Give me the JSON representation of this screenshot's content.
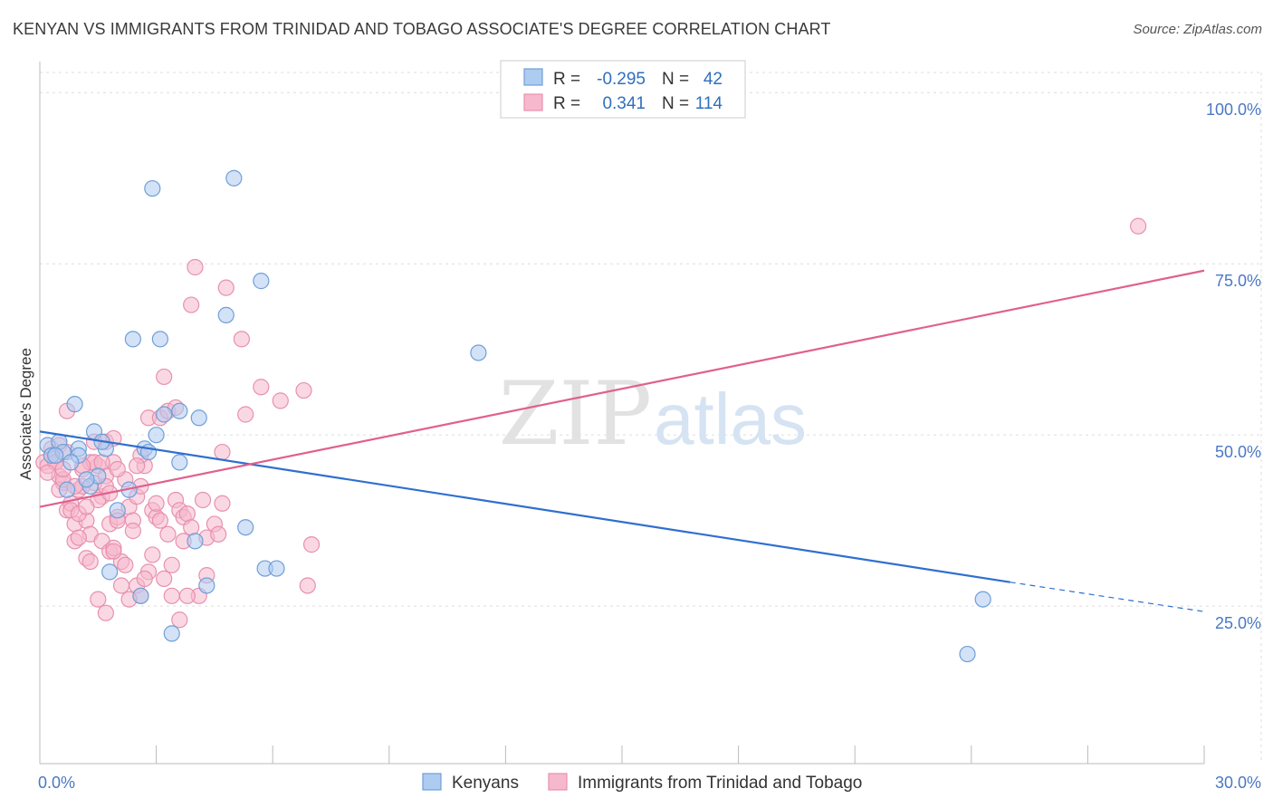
{
  "title": "KENYAN VS IMMIGRANTS FROM TRINIDAD AND TOBAGO ASSOCIATE'S DEGREE CORRELATION CHART",
  "source": "Source: ZipAtlas.com",
  "watermark": {
    "zip": "ZIP",
    "atlas": "atlas"
  },
  "colors": {
    "blue_fill": "#aecbf0",
    "blue_stroke": "#6f9fd8",
    "blue_line": "#2f6fcf",
    "pink_fill": "#f6b8cc",
    "pink_stroke": "#e890ae",
    "pink_line": "#e0608e",
    "tick_label": "#4a78c4",
    "grid": "#dddddd"
  },
  "legend": {
    "rows": [
      {
        "r_label": "R =",
        "r_value": "-0.295",
        "n_label": "N =",
        "n_value": "42",
        "series": "blue"
      },
      {
        "r_label": "R =",
        "r_value": "0.341",
        "n_label": "N =",
        "n_value": "114",
        "series": "pink"
      }
    ]
  },
  "bottom_legend": [
    {
      "label": "Kenyans",
      "series": "blue"
    },
    {
      "label": "Immigrants from Trinidad and Tobago",
      "series": "pink"
    }
  ],
  "chart_data": {
    "type": "scatter",
    "title": "KENYAN VS IMMIGRANTS FROM TRINIDAD AND TOBAGO ASSOCIATE'S DEGREE CORRELATION CHART",
    "xlabel": "",
    "ylabel": "Associate's Degree",
    "xlim": [
      0,
      30
    ],
    "ylim": [
      2,
      104
    ],
    "x_tick_labels": [
      "0.0%",
      "30.0%"
    ],
    "y_ticks": [
      25,
      50,
      75,
      100
    ],
    "y_tick_labels": [
      "25.0%",
      "50.0%",
      "75.0%",
      "100.0%"
    ],
    "grid": "horizontal dashed",
    "legend_position": "top-center",
    "series": [
      {
        "name": "Kenyans",
        "color": "blue",
        "points": [
          [
            0.2,
            48.5
          ],
          [
            0.3,
            47
          ],
          [
            0.5,
            49
          ],
          [
            0.6,
            47.5
          ],
          [
            0.7,
            42
          ],
          [
            0.9,
            54.5
          ],
          [
            1.0,
            48
          ],
          [
            1.3,
            42.5
          ],
          [
            1.4,
            50.5
          ],
          [
            1.5,
            44
          ],
          [
            1.7,
            48
          ],
          [
            1.8,
            30
          ],
          [
            2.0,
            39
          ],
          [
            2.3,
            42
          ],
          [
            2.4,
            64
          ],
          [
            2.6,
            26.5
          ],
          [
            2.7,
            48
          ],
          [
            2.9,
            86
          ],
          [
            3.0,
            50
          ],
          [
            3.1,
            64
          ],
          [
            3.4,
            21
          ],
          [
            3.6,
            53.5
          ],
          [
            3.6,
            46
          ],
          [
            4.1,
            52.5
          ],
          [
            4.0,
            34.5
          ],
          [
            4.3,
            28
          ],
          [
            4.8,
            67.5
          ],
          [
            5.0,
            87.5
          ],
          [
            5.3,
            36.5
          ],
          [
            5.7,
            72.5
          ],
          [
            5.8,
            30.5
          ],
          [
            6.1,
            30.5
          ],
          [
            11.3,
            62
          ],
          [
            1.0,
            47
          ],
          [
            0.4,
            47
          ],
          [
            2.8,
            47.5
          ],
          [
            1.6,
            49
          ],
          [
            0.8,
            46
          ],
          [
            3.2,
            53
          ],
          [
            24.3,
            26
          ],
          [
            23.9,
            18
          ],
          [
            1.2,
            43.5
          ]
        ]
      },
      {
        "name": "Immigrants from Trinidad and Tobago",
        "color": "pink",
        "points": [
          [
            0.1,
            46
          ],
          [
            0.2,
            45.5
          ],
          [
            0.3,
            47
          ],
          [
            0.4,
            46
          ],
          [
            0.5,
            44
          ],
          [
            0.6,
            43
          ],
          [
            0.7,
            39
          ],
          [
            0.7,
            53.5
          ],
          [
            0.8,
            40
          ],
          [
            0.9,
            37
          ],
          [
            0.9,
            34.5
          ],
          [
            1.0,
            42
          ],
          [
            1.1,
            45
          ],
          [
            1.2,
            37.5
          ],
          [
            1.2,
            32
          ],
          [
            1.3,
            35.5
          ],
          [
            1.3,
            31.5
          ],
          [
            1.4,
            43
          ],
          [
            1.5,
            45.5
          ],
          [
            1.6,
            34.5
          ],
          [
            1.6,
            41
          ],
          [
            1.7,
            49
          ],
          [
            1.7,
            44
          ],
          [
            1.8,
            37
          ],
          [
            1.8,
            33
          ],
          [
            1.9,
            46
          ],
          [
            1.9,
            49.5
          ],
          [
            2.0,
            38
          ],
          [
            2.1,
            31.5
          ],
          [
            2.1,
            28
          ],
          [
            2.2,
            43.5
          ],
          [
            2.3,
            39.5
          ],
          [
            2.4,
            37.5
          ],
          [
            2.5,
            41
          ],
          [
            2.5,
            28
          ],
          [
            2.6,
            26.5
          ],
          [
            2.6,
            42.5
          ],
          [
            2.7,
            45.5
          ],
          [
            2.8,
            30
          ],
          [
            2.8,
            52.5
          ],
          [
            2.9,
            39
          ],
          [
            3.0,
            38
          ],
          [
            3.1,
            52.5
          ],
          [
            3.1,
            37.5
          ],
          [
            3.2,
            58.5
          ],
          [
            3.3,
            53.5
          ],
          [
            3.3,
            35.5
          ],
          [
            3.4,
            31
          ],
          [
            3.4,
            26.5
          ],
          [
            3.5,
            40.5
          ],
          [
            3.6,
            39
          ],
          [
            3.6,
            23
          ],
          [
            3.7,
            38
          ],
          [
            3.7,
            34.5
          ],
          [
            3.8,
            38.5
          ],
          [
            3.9,
            36.5
          ],
          [
            3.9,
            69
          ],
          [
            4.0,
            74.5
          ],
          [
            4.1,
            26.5
          ],
          [
            4.3,
            35
          ],
          [
            4.3,
            29.5
          ],
          [
            4.5,
            37
          ],
          [
            4.7,
            40
          ],
          [
            4.7,
            47.5
          ],
          [
            4.8,
            71.5
          ],
          [
            5.2,
            64
          ],
          [
            5.3,
            53
          ],
          [
            5.7,
            57
          ],
          [
            6.2,
            55
          ],
          [
            6.8,
            56.5
          ],
          [
            6.9,
            28
          ],
          [
            7.0,
            34
          ],
          [
            28.3,
            80.5
          ],
          [
            0.3,
            48
          ],
          [
            0.5,
            42
          ],
          [
            0.6,
            43.5
          ],
          [
            0.8,
            39
          ],
          [
            1.0,
            38.5
          ],
          [
            1.1,
            42.5
          ],
          [
            1.3,
            46
          ],
          [
            1.4,
            46
          ],
          [
            1.5,
            40.5
          ],
          [
            1.6,
            46
          ],
          [
            1.7,
            42.5
          ],
          [
            1.9,
            33.5
          ],
          [
            2.0,
            37.5
          ],
          [
            2.2,
            31
          ],
          [
            2.4,
            36
          ],
          [
            2.7,
            29
          ],
          [
            3.0,
            40
          ],
          [
            1.2,
            39.5
          ],
          [
            0.9,
            42.5
          ],
          [
            0.4,
            46
          ],
          [
            2.6,
            47
          ],
          [
            3.5,
            54
          ],
          [
            2.9,
            32.5
          ],
          [
            1.8,
            41.5
          ],
          [
            0.6,
            45
          ],
          [
            1.1,
            45.5
          ],
          [
            2.3,
            26
          ],
          [
            4.6,
            35.5
          ],
          [
            1.5,
            26
          ],
          [
            3.8,
            26.5
          ],
          [
            0.2,
            44.5
          ],
          [
            0.5,
            48.5
          ],
          [
            1.4,
            49
          ],
          [
            2.0,
            45
          ],
          [
            1.0,
            35
          ],
          [
            3.2,
            29
          ],
          [
            2.5,
            45.5
          ],
          [
            1.7,
            24
          ],
          [
            4.2,
            40.5
          ],
          [
            0.7,
            47.5
          ],
          [
            1.9,
            33
          ]
        ]
      }
    ],
    "trend_lines": [
      {
        "series": "Kenyans",
        "solid": [
          [
            0,
            50.5
          ],
          [
            25,
            28.5
          ]
        ],
        "dashed": [
          [
            25,
            28.5
          ],
          [
            30,
            24.2
          ]
        ]
      },
      {
        "series": "Immigrants from Trinidad and Tobago",
        "solid": [
          [
            0,
            39.5
          ],
          [
            30,
            74
          ]
        ]
      }
    ]
  }
}
